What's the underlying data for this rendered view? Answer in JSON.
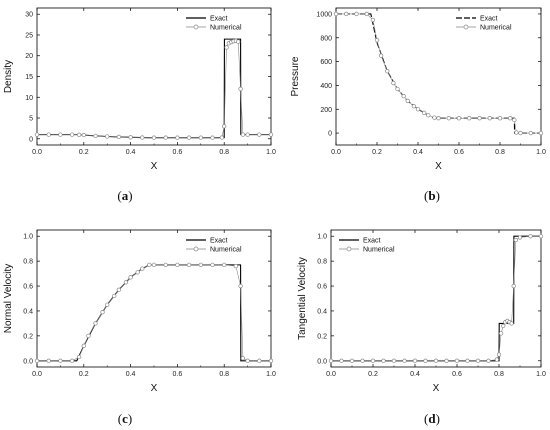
{
  "figure": {
    "captions": [
      {
        "letter": "a",
        "open": "(",
        "close": ")"
      },
      {
        "letter": "b",
        "open": "(",
        "close": ")"
      },
      {
        "letter": "c",
        "open": "(",
        "close": ")"
      },
      {
        "letter": "d",
        "open": "(",
        "close": ")"
      }
    ]
  },
  "chart_data": [
    {
      "panel": "a",
      "type": "line",
      "xlabel": "X",
      "ylabel": "Density",
      "xlim": [
        0,
        1
      ],
      "ylim": [
        -1.5,
        31.5
      ],
      "xticks": [
        "0.0",
        "0.2",
        "0.4",
        "0.6",
        "0.8",
        "1.0"
      ],
      "yticks": [
        "0",
        "5",
        "10",
        "15",
        "20",
        "25",
        "30"
      ],
      "legend": {
        "position": "top-right",
        "entries": [
          "Exact",
          "Numerical"
        ]
      },
      "series": [
        {
          "name": "Exact",
          "style": "solid",
          "color": "#000000",
          "x": [
            0,
            0.17,
            0.2,
            0.25,
            0.3,
            0.35,
            0.4,
            0.45,
            0.48,
            0.5,
            0.8,
            0.801,
            0.87,
            0.871,
            1.0
          ],
          "y": [
            1.0,
            1.0,
            0.9,
            0.7,
            0.55,
            0.45,
            0.35,
            0.3,
            0.27,
            0.27,
            0.27,
            24.0,
            24.0,
            1.0,
            1.0
          ]
        },
        {
          "name": "Numerical",
          "style": "markers",
          "color": "#888888",
          "x": [
            0,
            0.05,
            0.1,
            0.15,
            0.18,
            0.2,
            0.25,
            0.3,
            0.35,
            0.4,
            0.45,
            0.5,
            0.55,
            0.6,
            0.65,
            0.7,
            0.75,
            0.79,
            0.8,
            0.81,
            0.82,
            0.83,
            0.84,
            0.85,
            0.86,
            0.87,
            0.88,
            0.9,
            0.95,
            1.0
          ],
          "y": [
            1.0,
            1.0,
            1.0,
            1.0,
            0.95,
            0.9,
            0.7,
            0.55,
            0.45,
            0.35,
            0.3,
            0.27,
            0.27,
            0.27,
            0.27,
            0.27,
            0.27,
            0.3,
            3.0,
            22.0,
            23.0,
            23.3,
            23.5,
            23.6,
            23.4,
            12.0,
            1.0,
            1.0,
            1.0,
            1.0
          ]
        }
      ]
    },
    {
      "panel": "b",
      "type": "line",
      "xlabel": "X",
      "ylabel": "Pressure",
      "xlim": [
        0,
        1
      ],
      "ylim": [
        -100,
        1050
      ],
      "xticks": [
        "0.0",
        "0.2",
        "0.4",
        "0.6",
        "0.8",
        "1.0"
      ],
      "yticks": [
        "0",
        "200",
        "400",
        "600",
        "800",
        "1000"
      ],
      "legend": {
        "position": "top-right",
        "entries": [
          "Exact",
          "Numerical"
        ]
      },
      "series": [
        {
          "name": "Exact",
          "style": "dashed",
          "color": "#000000",
          "x": [
            0,
            0.17,
            0.2,
            0.25,
            0.3,
            0.35,
            0.4,
            0.45,
            0.48,
            0.5,
            0.87,
            0.871,
            1.0
          ],
          "y": [
            1000,
            1000,
            760,
            520,
            370,
            270,
            200,
            150,
            125,
            125,
            125,
            0.01,
            0.01
          ]
        },
        {
          "name": "Numerical",
          "style": "markers",
          "color": "#888888",
          "x": [
            0,
            0.05,
            0.1,
            0.15,
            0.18,
            0.2,
            0.22,
            0.25,
            0.28,
            0.3,
            0.33,
            0.35,
            0.38,
            0.4,
            0.43,
            0.45,
            0.48,
            0.5,
            0.55,
            0.6,
            0.65,
            0.7,
            0.75,
            0.8,
            0.85,
            0.87,
            0.88,
            0.9,
            0.95,
            1.0
          ],
          "y": [
            1000,
            1000,
            1000,
            1000,
            950,
            780,
            650,
            520,
            420,
            370,
            310,
            270,
            225,
            200,
            170,
            150,
            130,
            125,
            125,
            125,
            125,
            125,
            125,
            125,
            125,
            110,
            5,
            0,
            0,
            0
          ]
        }
      ]
    },
    {
      "panel": "c",
      "type": "line",
      "xlabel": "X",
      "ylabel": "Normal Velocity",
      "xlim": [
        0,
        1
      ],
      "ylim": [
        -0.05,
        1.05
      ],
      "xticks": [
        "0.0",
        "0.2",
        "0.4",
        "0.6",
        "0.8",
        "1.0"
      ],
      "yticks": [
        "0.0",
        "0.2",
        "0.4",
        "0.6",
        "0.8",
        "1.0"
      ],
      "legend": {
        "position": "top-right",
        "entries": [
          "Exact",
          "Numerical"
        ]
      },
      "series": [
        {
          "name": "Exact",
          "style": "solid",
          "color": "#000000",
          "x": [
            0,
            0.17,
            0.2,
            0.25,
            0.3,
            0.35,
            0.4,
            0.45,
            0.48,
            0.5,
            0.87,
            0.871,
            1.0
          ],
          "y": [
            0,
            0,
            0.12,
            0.3,
            0.45,
            0.57,
            0.67,
            0.74,
            0.77,
            0.77,
            0.77,
            0,
            0
          ]
        },
        {
          "name": "Numerical",
          "style": "markers",
          "color": "#888888",
          "x": [
            0,
            0.05,
            0.1,
            0.15,
            0.18,
            0.2,
            0.22,
            0.25,
            0.28,
            0.3,
            0.33,
            0.35,
            0.38,
            0.4,
            0.43,
            0.45,
            0.48,
            0.5,
            0.55,
            0.6,
            0.65,
            0.7,
            0.75,
            0.8,
            0.85,
            0.87,
            0.88,
            0.9,
            0.95,
            1.0
          ],
          "y": [
            0,
            0,
            0,
            0,
            0.03,
            0.12,
            0.2,
            0.3,
            0.39,
            0.45,
            0.52,
            0.57,
            0.63,
            0.67,
            0.71,
            0.74,
            0.77,
            0.77,
            0.77,
            0.77,
            0.77,
            0.77,
            0.77,
            0.77,
            0.76,
            0.6,
            0.02,
            0,
            0,
            0
          ]
        }
      ]
    },
    {
      "panel": "d",
      "type": "line",
      "xlabel": "X",
      "ylabel": "Tangential Velocity",
      "xlim": [
        0,
        1
      ],
      "ylim": [
        -0.05,
        1.05
      ],
      "xticks": [
        "0.0",
        "0.2",
        "0.4",
        "0.6",
        "0.8",
        "1.0"
      ],
      "yticks": [
        "0.0",
        "0.2",
        "0.4",
        "0.6",
        "0.8",
        "1.0"
      ],
      "legend": {
        "position": "top-left",
        "entries": [
          "Exact",
          "Numerical"
        ]
      },
      "series": [
        {
          "name": "Exact",
          "style": "solid",
          "color": "#000000",
          "x": [
            0,
            0.8,
            0.801,
            0.87,
            0.871,
            1.0
          ],
          "y": [
            0,
            0,
            0.3,
            0.3,
            1.0,
            1.0
          ]
        },
        {
          "name": "Numerical",
          "style": "markers",
          "color": "#888888",
          "x": [
            0,
            0.05,
            0.1,
            0.15,
            0.2,
            0.25,
            0.3,
            0.35,
            0.4,
            0.45,
            0.5,
            0.55,
            0.6,
            0.65,
            0.7,
            0.75,
            0.79,
            0.8,
            0.81,
            0.82,
            0.83,
            0.84,
            0.85,
            0.86,
            0.87,
            0.88,
            0.9,
            0.95,
            1.0
          ],
          "y": [
            0,
            0,
            0,
            0,
            0,
            0,
            0,
            0,
            0,
            0,
            0,
            0,
            0,
            0,
            0,
            0,
            0.01,
            0.05,
            0.22,
            0.28,
            0.31,
            0.32,
            0.31,
            0.3,
            0.6,
            0.97,
            0.99,
            1.0,
            1.0
          ]
        }
      ]
    }
  ]
}
